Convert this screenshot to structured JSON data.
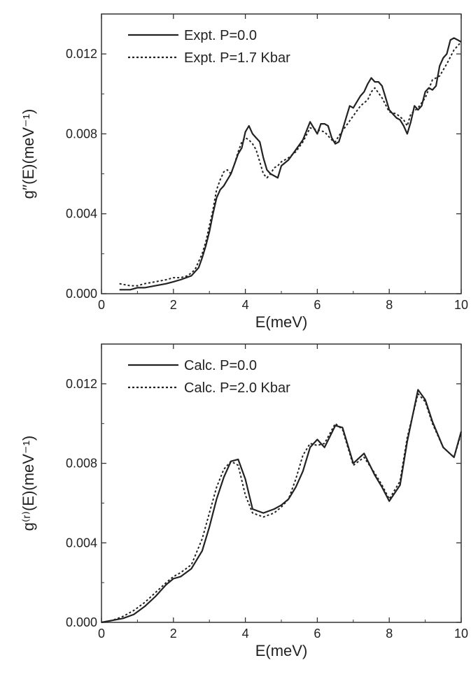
{
  "chart_data": [
    {
      "type": "line",
      "xlabel": "E(meV)",
      "ylabel": "g′′(E)(meV⁻¹)",
      "xlim": [
        0,
        10
      ],
      "ylim": [
        0,
        0.014
      ],
      "xticks": [
        0,
        2,
        4,
        6,
        8,
        10
      ],
      "xtick_labels": [
        "0",
        "2",
        "4",
        "6",
        "8",
        "10"
      ],
      "yticks": [
        0.0,
        0.004,
        0.008,
        0.012
      ],
      "ytick_labels": [
        "0.000",
        "0.004",
        "0.008",
        "0.012"
      ],
      "grid": false,
      "legend_position": "top-left",
      "series": [
        {
          "name": "Expt. P=0.0",
          "style": "solid",
          "color": "#222222",
          "x": [
            0.5,
            0.8,
            1.0,
            1.2,
            1.5,
            1.8,
            2.0,
            2.2,
            2.5,
            2.7,
            2.8,
            2.9,
            3.0,
            3.1,
            3.2,
            3.3,
            3.4,
            3.5,
            3.6,
            3.7,
            3.8,
            3.9,
            4.0,
            4.1,
            4.2,
            4.3,
            4.4,
            4.5,
            4.6,
            4.7,
            4.8,
            4.9,
            5.0,
            5.2,
            5.4,
            5.6,
            5.8,
            6.0,
            6.1,
            6.2,
            6.3,
            6.4,
            6.5,
            6.6,
            6.7,
            6.8,
            6.9,
            7.0,
            7.1,
            7.2,
            7.3,
            7.4,
            7.5,
            7.6,
            7.7,
            7.8,
            7.9,
            8.0,
            8.1,
            8.2,
            8.3,
            8.4,
            8.5,
            8.6,
            8.7,
            8.8,
            8.9,
            9.0,
            9.1,
            9.2,
            9.3,
            9.4,
            9.5,
            9.6,
            9.7,
            9.8,
            9.9,
            10.0
          ],
          "y": [
            0.0002,
            0.0002,
            0.0003,
            0.0003,
            0.0004,
            0.0005,
            0.0006,
            0.0007,
            0.0009,
            0.0013,
            0.0018,
            0.0024,
            0.0031,
            0.004,
            0.0048,
            0.0052,
            0.0054,
            0.0057,
            0.006,
            0.0065,
            0.007,
            0.0073,
            0.0081,
            0.0084,
            0.008,
            0.0078,
            0.0076,
            0.0068,
            0.0062,
            0.006,
            0.0059,
            0.0058,
            0.0064,
            0.0067,
            0.0072,
            0.0077,
            0.0086,
            0.008,
            0.0085,
            0.0085,
            0.0084,
            0.0078,
            0.0075,
            0.0076,
            0.0082,
            0.0088,
            0.0094,
            0.0093,
            0.0096,
            0.0099,
            0.0101,
            0.0105,
            0.0108,
            0.0106,
            0.0106,
            0.0104,
            0.0098,
            0.0092,
            0.009,
            0.0088,
            0.0087,
            0.0084,
            0.008,
            0.0086,
            0.0094,
            0.0092,
            0.0094,
            0.0101,
            0.0103,
            0.0102,
            0.0104,
            0.0114,
            0.0118,
            0.012,
            0.0127,
            0.0128,
            0.0127,
            0.0126
          ]
        },
        {
          "name": "Expt. P=1.7 Kbar",
          "style": "dotted",
          "color": "#222222",
          "x": [
            0.5,
            0.8,
            1.0,
            1.2,
            1.5,
            1.8,
            2.0,
            2.2,
            2.4,
            2.6,
            2.8,
            2.9,
            3.0,
            3.1,
            3.2,
            3.3,
            3.4,
            3.5,
            3.6,
            3.7,
            3.8,
            3.9,
            4.0,
            4.1,
            4.2,
            4.3,
            4.4,
            4.5,
            4.6,
            4.7,
            4.8,
            4.9,
            5.0,
            5.2,
            5.4,
            5.6,
            5.8,
            6.0,
            6.2,
            6.4,
            6.5,
            6.6,
            6.8,
            7.0,
            7.2,
            7.4,
            7.5,
            7.6,
            7.8,
            8.0,
            8.2,
            8.4,
            8.5,
            8.6,
            8.8,
            9.0,
            9.2,
            9.4,
            9.6,
            9.8,
            10.0
          ],
          "y": [
            0.0005,
            0.0004,
            0.0004,
            0.0005,
            0.0006,
            0.0007,
            0.0008,
            0.0008,
            0.0009,
            0.0012,
            0.002,
            0.0026,
            0.0034,
            0.0042,
            0.0052,
            0.0057,
            0.0061,
            0.0062,
            0.006,
            0.0065,
            0.0071,
            0.0076,
            0.0078,
            0.0077,
            0.0075,
            0.0072,
            0.0066,
            0.006,
            0.0058,
            0.006,
            0.0063,
            0.0064,
            0.0066,
            0.0068,
            0.0071,
            0.0076,
            0.0083,
            0.0082,
            0.0081,
            0.0077,
            0.0076,
            0.0079,
            0.0084,
            0.0089,
            0.0094,
            0.0097,
            0.0101,
            0.0103,
            0.0098,
            0.0091,
            0.009,
            0.0087,
            0.0084,
            0.009,
            0.0093,
            0.0098,
            0.0107,
            0.0109,
            0.0115,
            0.0122,
            0.0126
          ]
        }
      ]
    },
    {
      "type": "line",
      "xlabel": "E(meV)",
      "ylabel": "g⁽ʳ⁾(E)(meV⁻¹)",
      "xlim": [
        0,
        10
      ],
      "ylim": [
        0,
        0.014
      ],
      "xticks": [
        0,
        2,
        4,
        6,
        8,
        10
      ],
      "xtick_labels": [
        "0",
        "2",
        "4",
        "6",
        "8",
        "10"
      ],
      "yticks": [
        0.0,
        0.004,
        0.008,
        0.012
      ],
      "ytick_labels": [
        "0.000",
        "0.004",
        "0.008",
        "0.012"
      ],
      "grid": false,
      "legend_position": "top-left",
      "series": [
        {
          "name": "Calc. P=0.0",
          "style": "solid",
          "color": "#222222",
          "x": [
            0.0,
            0.3,
            0.6,
            0.9,
            1.2,
            1.5,
            1.8,
            2.0,
            2.2,
            2.5,
            2.8,
            3.0,
            3.2,
            3.4,
            3.6,
            3.8,
            4.0,
            4.2,
            4.5,
            4.8,
            5.0,
            5.2,
            5.4,
            5.6,
            5.8,
            6.0,
            6.2,
            6.5,
            6.7,
            7.0,
            7.3,
            7.6,
            7.8,
            8.0,
            8.3,
            8.5,
            8.8,
            9.0,
            9.2,
            9.5,
            9.8,
            10.0
          ],
          "y": [
            0.0,
            0.0001,
            0.0002,
            0.0004,
            0.0008,
            0.0013,
            0.0019,
            0.0022,
            0.0023,
            0.0027,
            0.0036,
            0.0048,
            0.0062,
            0.0073,
            0.0081,
            0.0082,
            0.0072,
            0.0057,
            0.0055,
            0.0057,
            0.0059,
            0.0062,
            0.0068,
            0.0076,
            0.0088,
            0.0092,
            0.0088,
            0.0099,
            0.0098,
            0.008,
            0.0085,
            0.0074,
            0.0068,
            0.0061,
            0.0069,
            0.0091,
            0.0117,
            0.0112,
            0.0101,
            0.0088,
            0.0083,
            0.0096
          ]
        },
        {
          "name": "Calc. P=2.0 Kbar",
          "style": "dotted",
          "color": "#222222",
          "x": [
            0.0,
            0.3,
            0.6,
            0.9,
            1.2,
            1.5,
            1.8,
            2.0,
            2.2,
            2.5,
            2.8,
            3.0,
            3.2,
            3.4,
            3.6,
            3.8,
            4.0,
            4.2,
            4.5,
            4.8,
            5.0,
            5.2,
            5.4,
            5.6,
            5.8,
            6.0,
            6.2,
            6.5,
            6.7,
            7.0,
            7.3,
            7.6,
            7.8,
            8.0,
            8.3,
            8.5,
            8.8,
            9.0,
            9.2,
            9.5,
            9.8,
            10.0
          ],
          "y": [
            0.0,
            0.0001,
            0.0003,
            0.0006,
            0.001,
            0.0015,
            0.002,
            0.0023,
            0.0025,
            0.0029,
            0.0042,
            0.0055,
            0.0068,
            0.0077,
            0.0081,
            0.0079,
            0.0064,
            0.0055,
            0.0053,
            0.0055,
            0.0058,
            0.0062,
            0.0072,
            0.0084,
            0.009,
            0.0089,
            0.009,
            0.01,
            0.0097,
            0.0079,
            0.0083,
            0.0075,
            0.0069,
            0.0062,
            0.0071,
            0.0093,
            0.0115,
            0.0111,
            0.01,
            0.0088,
            0.0083,
            0.0095
          ]
        }
      ]
    }
  ]
}
